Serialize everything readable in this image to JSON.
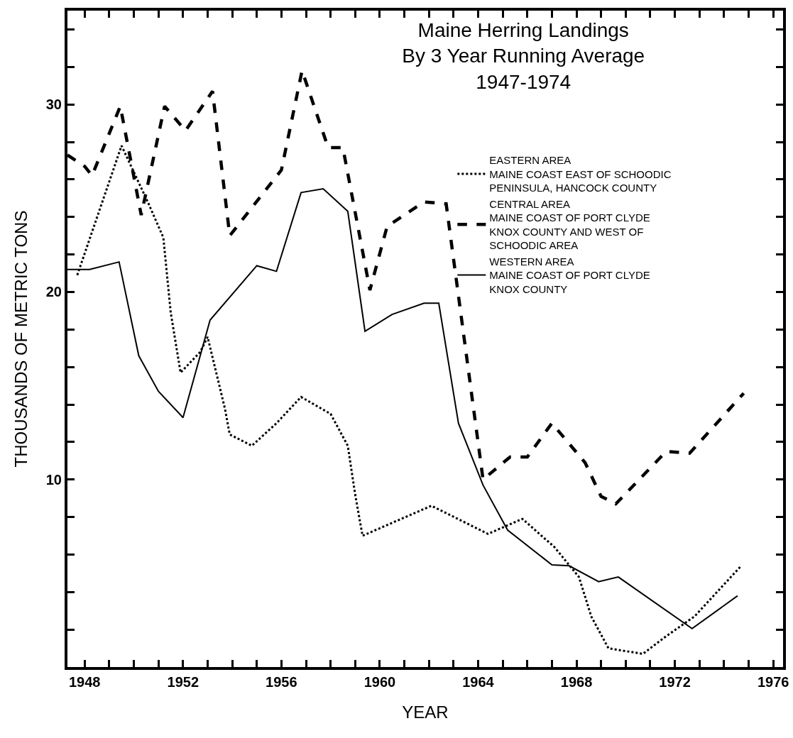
{
  "chart_data": {
    "type": "line",
    "title": "Maine Herring Landings\nBy 3 Year Running Average\n1947-1974",
    "xlabel": "YEAR",
    "ylabel": "THOUSANDS OF METRIC TONS",
    "xlim": [
      1947.3,
      1976.4
    ],
    "ylim": [
      0,
      35
    ],
    "xticks": [
      1948,
      {
        "value": 1949,
        "label": null
      },
      {
        "value": 1950,
        "label": null
      },
      {
        "value": 1951,
        "label": null
      },
      1952,
      {
        "value": 1953,
        "label": null
      },
      {
        "value": 1954,
        "label": null
      },
      {
        "value": 1955,
        "label": null
      },
      1956,
      {
        "value": 1957,
        "label": null
      },
      {
        "value": 1958,
        "label": null
      },
      {
        "value": 1959,
        "label": null
      },
      1960,
      {
        "value": 1961,
        "label": null
      },
      {
        "value": 1962,
        "label": null
      },
      {
        "value": 1963,
        "label": null
      },
      1964,
      {
        "value": 1965,
        "label": null
      },
      {
        "value": 1966,
        "label": null
      },
      {
        "value": 1967,
        "label": null
      },
      1968,
      {
        "value": 1969,
        "label": null
      },
      {
        "value": 1970,
        "label": null
      },
      {
        "value": 1971,
        "label": null
      },
      1972,
      {
        "value": 1973,
        "label": null
      },
      {
        "value": 1974,
        "label": null
      },
      {
        "value": 1975,
        "label": null
      },
      1976
    ],
    "yticks": [
      {
        "value": 2,
        "label": null
      },
      {
        "value": 4,
        "label": null
      },
      {
        "value": 6,
        "label": null
      },
      {
        "value": 8,
        "label": null
      },
      10,
      {
        "value": 12,
        "label": null
      },
      {
        "value": 14,
        "label": null
      },
      {
        "value": 16,
        "label": null
      },
      {
        "value": 18,
        "label": null
      },
      20,
      {
        "value": 22,
        "label": null
      },
      {
        "value": 24,
        "label": null
      },
      {
        "value": 26,
        "label": null
      },
      {
        "value": 28,
        "label": null
      },
      30,
      {
        "value": 32,
        "label": null
      },
      {
        "value": 34,
        "label": null
      }
    ],
    "legend": "top right",
    "marker": "none",
    "series": [
      {
        "name": "EASTERN AREA\nMAINE COAST EAST OF SCHOODIC\nPENINSULA, HANCOCK COUNTY",
        "color": "#000000",
        "line_style": "dotted",
        "x": [
          1947.7,
          1949.5,
          1950.6,
          1951.2,
          1951.5,
          1951.9,
          1952.7,
          1953.0,
          1953.7,
          1953.9,
          1954.8,
          1955.8,
          1956.8,
          1958.0,
          1958.7,
          1959.0,
          1959.3,
          1962.1,
          1964.4,
          1965.8,
          1967.1,
          1968.1,
          1968.6,
          1969.3,
          1970.7,
          1971.6,
          1972.8,
          1974.7
        ],
        "values": [
          20.9,
          27.8,
          24.7,
          22.9,
          18.9,
          15.7,
          16.8,
          17.6,
          13.8,
          12.4,
          11.8,
          13.0,
          14.4,
          13.5,
          11.8,
          9.2,
          7.0,
          8.6,
          7.1,
          7.9,
          6.4,
          4.8,
          2.7,
          1.0,
          0.7,
          1.6,
          2.7,
          5.4
        ]
      },
      {
        "name": "CENTRAL AREA\nMAINE COAST OF PORT CLYDE\nKNOX COUNTY AND WEST OF\nSCHOODIC AREA",
        "color": "#000000",
        "line_style": "dashed",
        "x": [
          1947.3,
          1948.0,
          1948.3,
          1949.45,
          1950.3,
          1951.25,
          1952.1,
          1953.2,
          1953.9,
          1956.0,
          1956.84,
          1957.9,
          1958.5,
          1959.6,
          1960.3,
          1961.8,
          1962.7,
          1964.2,
          1965.3,
          1966.0,
          1967.0,
          1968.35,
          1969.0,
          1969.6,
          1971.65,
          1972.6,
          1974.8
        ],
        "values": [
          27.3,
          26.7,
          26.2,
          29.9,
          24.1,
          29.9,
          28.6,
          30.7,
          23.0,
          26.5,
          31.8,
          27.7,
          27.7,
          20.1,
          23.5,
          24.8,
          24.7,
          10.0,
          11.2,
          11.2,
          13.0,
          10.9,
          9.1,
          8.7,
          11.5,
          11.4,
          14.6
        ]
      },
      {
        "name": "WESTERN AREA\nMAINE COAST OF PORT CLYDE\nKNOX COUNTY",
        "color": "#000000",
        "line_style": "solid",
        "x": [
          1947.3,
          1948.2,
          1949.4,
          1950.2,
          1951.0,
          1952.0,
          1953.1,
          1955.0,
          1955.8,
          1956.8,
          1957.7,
          1958.7,
          1959.4,
          1960.5,
          1961.8,
          1962.4,
          1963.2,
          1964.2,
          1965.2,
          1967.0,
          1967.7,
          1968.9,
          1969.7,
          1972.7,
          1974.55
        ],
        "values": [
          21.2,
          21.2,
          21.6,
          16.6,
          14.7,
          13.3,
          18.5,
          21.4,
          21.1,
          25.3,
          25.5,
          24.3,
          17.9,
          18.8,
          19.4,
          19.4,
          13.0,
          9.7,
          7.3,
          5.45,
          5.4,
          4.55,
          4.8,
          2.05,
          3.8
        ]
      }
    ]
  }
}
